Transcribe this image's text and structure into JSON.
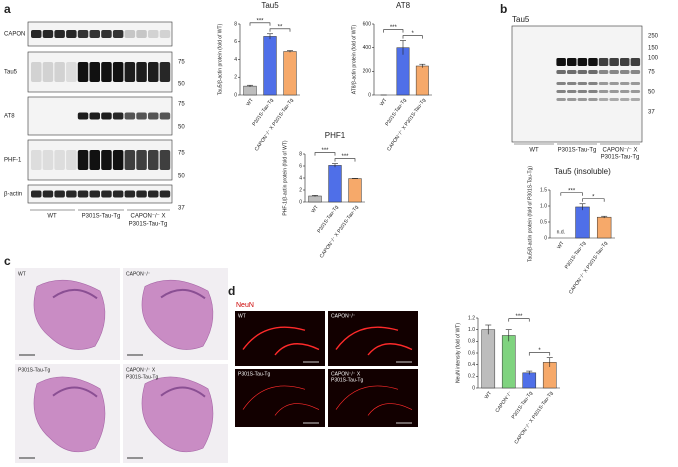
{
  "panel_labels": [
    "a",
    "b",
    "c",
    "d"
  ],
  "blot_a": {
    "rows": [
      "CAPON",
      "Tau5",
      "AT8",
      "PHF-1",
      "β-actin"
    ],
    "markers": [
      "75",
      "50",
      "75",
      "50",
      "75",
      "50",
      "37"
    ],
    "groups": [
      "WT",
      "P301S-Tau-Tg",
      "CAPON⁻/⁻ X",
      "P301S-Tau-Tg"
    ]
  },
  "blot_b": {
    "title": "Tau5",
    "markers": [
      "250",
      "150",
      "100",
      "75",
      "50",
      "37"
    ],
    "groups": [
      "WT",
      "P301S-Tau-Tg",
      "CAPON⁻/⁻ X",
      "P301S-Tau-Tg"
    ]
  },
  "histology_c": {
    "labels": [
      "WT",
      "CAPON⁻/⁻",
      "P301S-Tau-Tg",
      "CAPON⁻/⁻ X",
      "P301S-Tau-Tg"
    ]
  },
  "neun_d": {
    "stain": "NeuN",
    "labels": [
      "WT",
      "CAPON⁻/⁻",
      "P301S-Tau-Tg",
      "CAPON⁻/⁻ X",
      "P301S-Tau-Tg"
    ]
  },
  "chart_data": [
    {
      "type": "bar",
      "title": "Tau5",
      "y_label": "Tau5/β-actin protein (fold of WT)",
      "categories": [
        "WT",
        "P301S-Tau-Tg",
        "CAPON⁻/⁻ X P301S-Tau-Tg"
      ],
      "values": [
        1,
        6.6,
        4.9
      ],
      "errors": [
        0.1,
        0.3,
        0.1
      ],
      "colors": [
        "#bdbdbd",
        "#4f6fe8",
        "#f6a96a"
      ],
      "ylim": [
        0,
        8
      ],
      "yticks": [
        0,
        2,
        4,
        6,
        8
      ],
      "significance": [
        {
          "label": "***",
          "between": [
            0,
            1
          ]
        },
        {
          "label": "**",
          "between": [
            1,
            2
          ]
        }
      ]
    },
    {
      "type": "bar",
      "title": "AT8",
      "y_label": "AT8/β-actin protein (fold of WT)",
      "categories": [
        "WT",
        "P301S-Tau-Tg",
        "CAPON⁻/⁻ X P301S-Tau-Tg"
      ],
      "values": [
        0,
        400,
        245
      ],
      "errors": [
        0,
        60,
        15
      ],
      "colors": [
        "#bdbdbd",
        "#4f6fe8",
        "#f6a96a"
      ],
      "ylim": [
        0,
        600
      ],
      "yticks": [
        0,
        200,
        400,
        600
      ],
      "significance": [
        {
          "label": "***",
          "between": [
            0,
            1
          ]
        },
        {
          "label": "*",
          "between": [
            1,
            2
          ]
        }
      ]
    },
    {
      "type": "bar",
      "title": "PHF1",
      "y_label": "PHF-1/β-actin protein (fold of WT)",
      "categories": [
        "WT",
        "P301S-Tau-Tg",
        "CAPON⁻/⁻ X P301S-Tau-Tg"
      ],
      "values": [
        1,
        6.1,
        3.9
      ],
      "errors": [
        0.1,
        0.3,
        0.05
      ],
      "colors": [
        "#bdbdbd",
        "#4f6fe8",
        "#f6a96a"
      ],
      "ylim": [
        0,
        8
      ],
      "yticks": [
        0,
        2,
        4,
        6,
        8
      ],
      "significance": [
        {
          "label": "***",
          "between": [
            0,
            1
          ]
        },
        {
          "label": "***",
          "between": [
            1,
            2
          ]
        }
      ]
    },
    {
      "type": "bar",
      "title": "Tau5 (insoluble)",
      "y_label": "Tau5/β-actin protein (fold of P301S-Tau-Tg)",
      "categories": [
        "WT",
        "P301S-Tau-Tg",
        "CAPON⁻/⁻ X P301S-Tau-Tg"
      ],
      "values": [
        null,
        0.97,
        0.65
      ],
      "errors": [
        null,
        0.1,
        0.03
      ],
      "colors": [
        "#bdbdbd",
        "#4f6fe8",
        "#f6a96a"
      ],
      "ylim": [
        0,
        1.5
      ],
      "yticks": [
        0,
        0.5,
        {
          "value": 1,
          "label": "1.0"
        },
        1.5
      ],
      "annotations": [
        "n.d."
      ],
      "significance": [
        {
          "label": "***",
          "between": [
            0,
            1
          ]
        },
        {
          "label": "*",
          "between": [
            1,
            2
          ]
        }
      ]
    },
    {
      "type": "bar",
      "y_label": "NeuN intensity (fold of WT)",
      "categories": [
        "WT",
        "CAPON⁻/⁻",
        "P301S-Tau-Tg",
        "CAPON⁻/⁻ X P301S-Tau-Tg"
      ],
      "values": [
        1,
        0.9,
        0.26,
        0.44
      ],
      "errors": [
        0.08,
        0.1,
        0.03,
        0.08
      ],
      "colors": [
        "#bdbdbd",
        "#7fd37f",
        "#4f6fe8",
        "#f6a96a"
      ],
      "ylim": [
        0,
        1.2
      ],
      "yticks": [
        0,
        0.2,
        0.4,
        0.6,
        0.8,
        {
          "value": 1,
          "label": "1.0"
        },
        1.2
      ],
      "significance": [
        {
          "label": "***",
          "between": [
            1,
            2
          ]
        },
        {
          "label": "*",
          "between": [
            2,
            3
          ]
        }
      ]
    }
  ]
}
